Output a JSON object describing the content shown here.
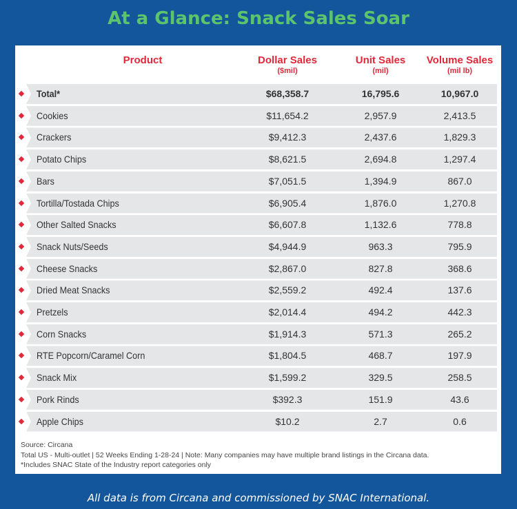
{
  "title": "At a Glance: Snack Sales Soar",
  "columns": [
    {
      "label": "Product",
      "unit": ""
    },
    {
      "label": "Dollar Sales",
      "unit": "($mil)"
    },
    {
      "label": "Unit Sales",
      "unit": "(mil)"
    },
    {
      "label": "Volume Sales",
      "unit": "(mil lb)"
    }
  ],
  "rows": [
    {
      "product": "Total*",
      "dollar": "$68,358.7",
      "unit": "16,795.6",
      "volume": "10,967.0"
    },
    {
      "product": "Cookies",
      "dollar": "$11,654.2",
      "unit": "2,957.9",
      "volume": "2,413.5"
    },
    {
      "product": "Crackers",
      "dollar": "$9,412.3",
      "unit": "2,437.6",
      "volume": "1,829.3"
    },
    {
      "product": "Potato Chips",
      "dollar": "$8,621.5",
      "unit": "2,694.8",
      "volume": "1,297.4"
    },
    {
      "product": "Bars",
      "dollar": "$7,051.5",
      "unit": "1,394.9",
      "volume": "867.0"
    },
    {
      "product": "Tortilla/Tostada Chips",
      "dollar": "$6,905.4",
      "unit": "1,876.0",
      "volume": "1,270.8"
    },
    {
      "product": "Other Salted Snacks",
      "dollar": "$6,607.8",
      "unit": "1,132.6",
      "volume": "778.8"
    },
    {
      "product": "Snack Nuts/Seeds",
      "dollar": "$4,944.9",
      "unit": "963.3",
      "volume": "795.9"
    },
    {
      "product": "Cheese Snacks",
      "dollar": "$2,867.0",
      "unit": "827.8",
      "volume": "368.6"
    },
    {
      "product": "Dried Meat Snacks",
      "dollar": "$2,559.2",
      "unit": "492.4",
      "volume": "137.6"
    },
    {
      "product": "Pretzels",
      "dollar": "$2,014.4",
      "unit": "494.2",
      "volume": "442.3"
    },
    {
      "product": "Corn Snacks",
      "dollar": "$1,914.3",
      "unit": "571.3",
      "volume": "265.2"
    },
    {
      "product": "RTE Popcorn/Caramel Corn",
      "dollar": "$1,804.5",
      "unit": "468.7",
      "volume": "197.9"
    },
    {
      "product": "Snack Mix",
      "dollar": "$1,599.2",
      "unit": "329.5",
      "volume": "258.5"
    },
    {
      "product": "Pork Rinds",
      "dollar": "$392.3",
      "unit": "151.9",
      "volume": "43.6"
    },
    {
      "product": "Apple Chips",
      "dollar": "$10.2",
      "unit": "2.7",
      "volume": "0.6"
    }
  ],
  "notes": [
    "Source: Circana",
    "Total US - Multi-outlet | 52 Weeks Ending 1-28-24 | Note: Many companies may have multiple brand listings in the Circana data.",
    "*Includes SNAC State of the Industry report categories only"
  ],
  "footer": "All data is from Circana and commissioned by SNAC International."
}
